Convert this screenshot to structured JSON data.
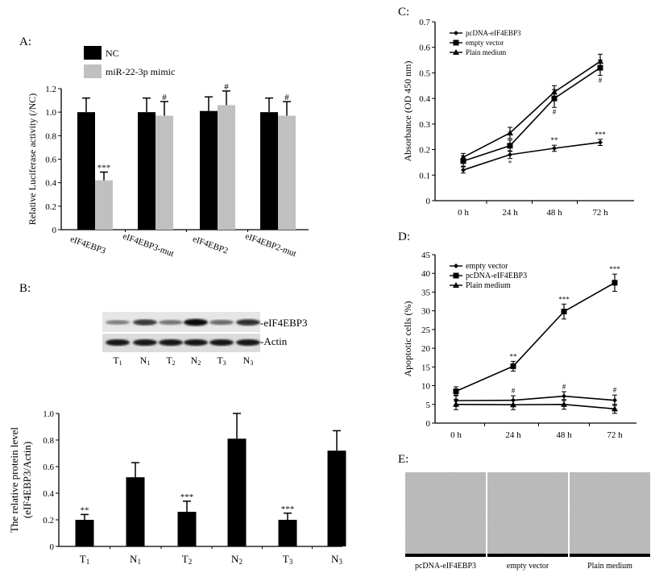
{
  "panels": {
    "A": "A:",
    "B": "B:",
    "C": "C:",
    "D": "D:",
    "E": "E:"
  },
  "chart_data": [
    {
      "id": "A",
      "type": "bar",
      "ylabel": "Relative Luciferase activity (/NC)",
      "ylim": [
        0,
        1.2
      ],
      "yticks": [
        "0",
        "0.2",
        "0.4",
        "0.6",
        "0.8",
        "1.0",
        "1.2"
      ],
      "categories": [
        "eIF4EBP3",
        "eIF4EBP3-mut",
        "eIF4EBP2",
        "eIF4EBP2-mut"
      ],
      "legend_position": "top-left",
      "series": [
        {
          "name": "NC",
          "color": "#000000",
          "values": [
            1.0,
            1.0,
            1.01,
            1.0
          ],
          "errors": [
            0.12,
            0.12,
            0.12,
            0.12
          ],
          "annotations": [
            "",
            "",
            "",
            ""
          ]
        },
        {
          "name": "miR-22-3p mimic",
          "color": "#c0c0c0",
          "values": [
            0.42,
            0.97,
            1.06,
            0.97
          ],
          "errors": [
            0.07,
            0.12,
            0.12,
            0.12
          ],
          "annotations": [
            "***",
            "#",
            "#",
            "#"
          ]
        }
      ]
    },
    {
      "id": "B",
      "type": "bar",
      "ylabel": "The relative protein level",
      "ylabel2": "(eIF4EBP3/Actin)",
      "ylim": [
        0,
        1.0
      ],
      "yticks": [
        "0",
        "0.2",
        "0.4",
        "0.6",
        "0.8",
        "1.0"
      ],
      "categories": [
        "T1",
        "N1",
        "T2",
        "N2",
        "T3",
        "N3"
      ],
      "series": [
        {
          "color": "#000000",
          "values": [
            0.2,
            0.52,
            0.26,
            0.81,
            0.2,
            0.72
          ],
          "errors": [
            0.04,
            0.11,
            0.08,
            0.19,
            0.05,
            0.15
          ],
          "annotations": [
            "**",
            "",
            "***",
            "",
            "***",
            ""
          ]
        }
      ]
    },
    {
      "id": "C",
      "type": "line",
      "ylabel": "Absorbance (OD 450 nm)",
      "ylim": [
        0,
        0.7
      ],
      "yticks": [
        "0",
        "0.1",
        "0.2",
        "0.3",
        "0.4",
        "0.5",
        "0.6",
        "0.7"
      ],
      "categories": [
        "0 h",
        "24 h",
        "48 h",
        "72 h"
      ],
      "legend_position": "top-left",
      "series": [
        {
          "name": "pcDNA-eIF4EBP3",
          "marker": "diamond",
          "values": [
            0.12,
            0.18,
            0.205,
            0.228
          ],
          "errors": [
            0.012,
            0.015,
            0.012,
            0.012
          ],
          "annotations": [
            "",
            "*",
            "**",
            "***"
          ],
          "annotation_side": [
            "",
            "below",
            "above",
            "above"
          ]
        },
        {
          "name": "empty vector",
          "marker": "square",
          "values": [
            0.155,
            0.215,
            0.4,
            0.52
          ],
          "errors": [
            0.02,
            0.022,
            0.035,
            0.03
          ],
          "annotations": [
            "",
            "",
            "#",
            "#"
          ],
          "annotation_side": [
            "",
            "",
            "below",
            "below"
          ]
        },
        {
          "name": "Plain medium",
          "marker": "triangle",
          "values": [
            0.17,
            0.265,
            0.425,
            0.545
          ],
          "errors": [
            0.015,
            0.022,
            0.025,
            0.028
          ],
          "annotations": [
            "",
            "",
            "",
            ""
          ],
          "annotation_side": [
            "",
            "",
            "",
            ""
          ]
        }
      ]
    },
    {
      "id": "D",
      "type": "line",
      "ylabel": "Apoptotic cells (%)",
      "ylim": [
        0,
        45
      ],
      "yticks": [
        "0",
        "5",
        "10",
        "15",
        "20",
        "25",
        "30",
        "35",
        "40",
        "45"
      ],
      "categories": [
        "0 h",
        "24 h",
        "48 h",
        "72 h"
      ],
      "legend_position": "top-left",
      "series": [
        {
          "name": "empty vector",
          "marker": "diamond",
          "values": [
            6.0,
            6.1,
            7.2,
            6.1
          ],
          "errors": [
            1.5,
            1.2,
            1.2,
            1.4
          ],
          "annotations": [
            "",
            "#",
            "#",
            "#"
          ],
          "annotation_side": [
            "",
            "above",
            "above",
            "above"
          ]
        },
        {
          "name": "pcDNA-eIF4EBP3",
          "marker": "square",
          "values": [
            8.5,
            15.2,
            29.8,
            37.5
          ],
          "errors": [
            1.2,
            1.3,
            2.0,
            2.3
          ],
          "annotations": [
            "",
            "**",
            "***",
            "***"
          ],
          "annotation_side": [
            "",
            "above",
            "above",
            "above"
          ]
        },
        {
          "name": "Plain medium",
          "marker": "triangle",
          "values": [
            5.0,
            4.9,
            5.0,
            3.8
          ],
          "errors": [
            1.4,
            1.3,
            1.3,
            1.2
          ],
          "annotations": [
            "",
            "",
            "",
            ""
          ],
          "annotation_side": [
            "",
            "",
            "",
            ""
          ]
        }
      ]
    }
  ],
  "blot": {
    "bands": [
      "-eIF4EBP3",
      "-Actin"
    ],
    "lanes": [
      "T1",
      "N1",
      "T2",
      "N2",
      "T3",
      "N3"
    ],
    "eIF4EBP3_intensity": [
      0.45,
      0.75,
      0.5,
      0.95,
      0.55,
      0.8
    ],
    "actin_intensity": [
      0.9,
      0.9,
      0.9,
      0.9,
      0.9,
      0.9
    ]
  },
  "micrographs": {
    "captions": [
      "pcDNA-eIF4EBP3",
      "empty vector",
      "Plain medium"
    ]
  }
}
